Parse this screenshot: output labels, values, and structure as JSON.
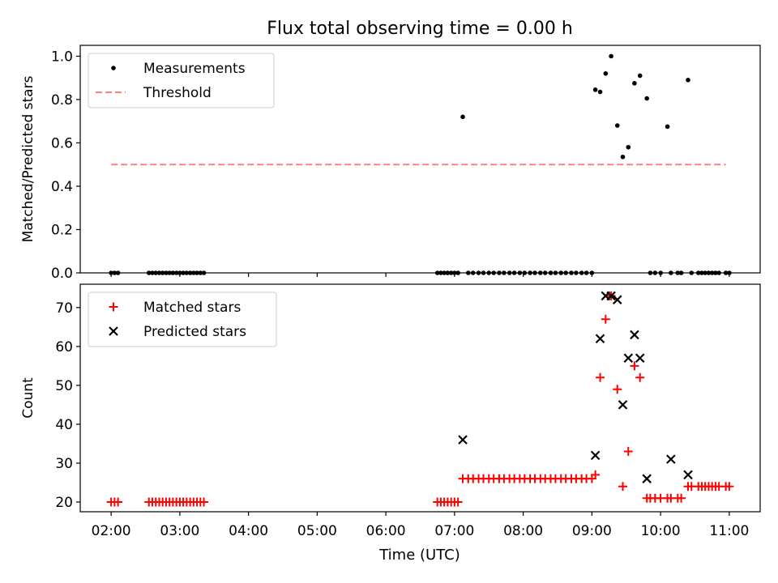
{
  "figure": {
    "title": "Flux total observing time = 0.00 h",
    "xlabel": "Time (UTC)"
  },
  "colors": {
    "measurement": "#000000",
    "threshold": "#ff7f7f",
    "matched": "#ff0000",
    "predicted": "#000000"
  },
  "chart_data": [
    {
      "type": "scatter",
      "ylabel": "Matched/Predicted stars",
      "xlim": [
        1.55,
        11.45
      ],
      "ylim": [
        0,
        1.05
      ],
      "xticks": [
        2,
        3,
        4,
        5,
        6,
        7,
        8,
        9,
        10,
        11
      ],
      "yticks": [
        0.0,
        0.2,
        0.4,
        0.6,
        0.8,
        1.0
      ],
      "ytick_labels": [
        "0.0",
        "0.2",
        "0.4",
        "0.6",
        "0.8",
        "1.0"
      ],
      "legend_position": "top-left",
      "series": [
        {
          "name": "Measurements",
          "kind": "dots",
          "x": [
            2.0,
            2.05,
            2.1,
            2.55,
            2.6,
            2.65,
            2.7,
            2.75,
            2.8,
            2.85,
            2.9,
            2.95,
            3.0,
            3.05,
            3.1,
            3.15,
            3.2,
            3.25,
            3.3,
            3.35,
            6.75,
            6.8,
            6.85,
            6.9,
            6.95,
            7.0,
            7.05,
            7.12,
            7.2,
            7.27,
            7.35,
            7.42,
            7.5,
            7.57,
            7.65,
            7.72,
            7.8,
            7.87,
            7.95,
            8.02,
            8.1,
            8.17,
            8.25,
            8.32,
            8.4,
            8.47,
            8.55,
            8.62,
            8.7,
            8.77,
            8.85,
            8.92,
            9.0,
            9.05,
            9.12,
            9.2,
            9.28,
            9.37,
            9.45,
            9.53,
            9.62,
            9.7,
            9.8,
            9.85,
            9.92,
            10.0,
            10.1,
            10.15,
            10.25,
            10.3,
            10.4,
            10.45,
            10.55,
            10.6,
            10.65,
            10.7,
            10.75,
            10.8,
            10.85,
            10.95,
            11.0
          ],
          "y": [
            0,
            0,
            0,
            0,
            0,
            0,
            0,
            0,
            0,
            0,
            0,
            0,
            0,
            0,
            0,
            0,
            0,
            0,
            0,
            0,
            0,
            0,
            0,
            0,
            0,
            0,
            0,
            0.72,
            0,
            0,
            0,
            0,
            0,
            0,
            0,
            0,
            0,
            0,
            0,
            0,
            0,
            0,
            0,
            0,
            0,
            0,
            0,
            0,
            0,
            0,
            0,
            0,
            0,
            0.845,
            0.835,
            0.92,
            1.0,
            0.68,
            0.535,
            0.58,
            0.875,
            0.91,
            0.805,
            0,
            0,
            0,
            0.675,
            0,
            0,
            0,
            0.89,
            0,
            0,
            0,
            0,
            0,
            0,
            0,
            0,
            0,
            0
          ]
        },
        {
          "name": "Threshold",
          "kind": "dashed-line",
          "x": [
            2.0,
            10.95
          ],
          "y": [
            0.5,
            0.5
          ]
        }
      ]
    },
    {
      "type": "scatter",
      "ylabel": "Count",
      "xlim": [
        1.55,
        11.45
      ],
      "ylim": [
        17.5,
        76
      ],
      "xticks": [
        2,
        3,
        4,
        5,
        6,
        7,
        8,
        9,
        10,
        11
      ],
      "xtick_labels": [
        "02:00",
        "03:00",
        "04:00",
        "05:00",
        "06:00",
        "07:00",
        "08:00",
        "09:00",
        "10:00",
        "11:00"
      ],
      "yticks": [
        20,
        30,
        40,
        50,
        60,
        70
      ],
      "ytick_labels": [
        "20",
        "30",
        "40",
        "50",
        "60",
        "70"
      ],
      "legend_position": "top-left",
      "series": [
        {
          "name": "Matched stars",
          "kind": "plus",
          "x": [
            2.0,
            2.05,
            2.1,
            2.55,
            2.6,
            2.65,
            2.7,
            2.75,
            2.8,
            2.85,
            2.9,
            2.95,
            3.0,
            3.05,
            3.1,
            3.15,
            3.2,
            3.25,
            3.3,
            3.35,
            6.75,
            6.8,
            6.85,
            6.9,
            6.95,
            7.0,
            7.05,
            7.12,
            7.2,
            7.27,
            7.35,
            7.42,
            7.5,
            7.57,
            7.65,
            7.72,
            7.8,
            7.87,
            7.95,
            8.02,
            8.1,
            8.17,
            8.25,
            8.32,
            8.4,
            8.47,
            8.55,
            8.62,
            8.7,
            8.77,
            8.85,
            8.92,
            9.0,
            9.05,
            9.12,
            9.2,
            9.28,
            9.37,
            9.45,
            9.53,
            9.62,
            9.7,
            9.8,
            9.85,
            9.92,
            10.0,
            10.1,
            10.15,
            10.25,
            10.3,
            10.4,
            10.45,
            10.55,
            10.6,
            10.65,
            10.7,
            10.75,
            10.8,
            10.85,
            10.95,
            11.0
          ],
          "y": [
            20,
            20,
            20,
            20,
            20,
            20,
            20,
            20,
            20,
            20,
            20,
            20,
            20,
            20,
            20,
            20,
            20,
            20,
            20,
            20,
            20,
            20,
            20,
            20,
            20,
            20,
            20,
            26,
            26,
            26,
            26,
            26,
            26,
            26,
            26,
            26,
            26,
            26,
            26,
            26,
            26,
            26,
            26,
            26,
            26,
            26,
            26,
            26,
            26,
            26,
            26,
            26,
            26,
            27,
            52,
            67,
            73,
            49,
            24,
            33,
            55,
            52,
            21,
            21,
            21,
            21,
            21,
            21,
            21,
            21,
            24,
            24,
            24,
            24,
            24,
            24,
            24,
            24,
            24,
            24,
            24
          ]
        },
        {
          "name": "Predicted stars",
          "kind": "x",
          "x": [
            7.12,
            9.05,
            9.12,
            9.2,
            9.28,
            9.37,
            9.45,
            9.53,
            9.62,
            9.7,
            9.8,
            10.15,
            10.4
          ],
          "y": [
            36,
            32,
            62,
            73,
            73,
            72,
            45,
            57,
            63,
            57,
            26,
            31,
            27
          ]
        }
      ]
    }
  ]
}
